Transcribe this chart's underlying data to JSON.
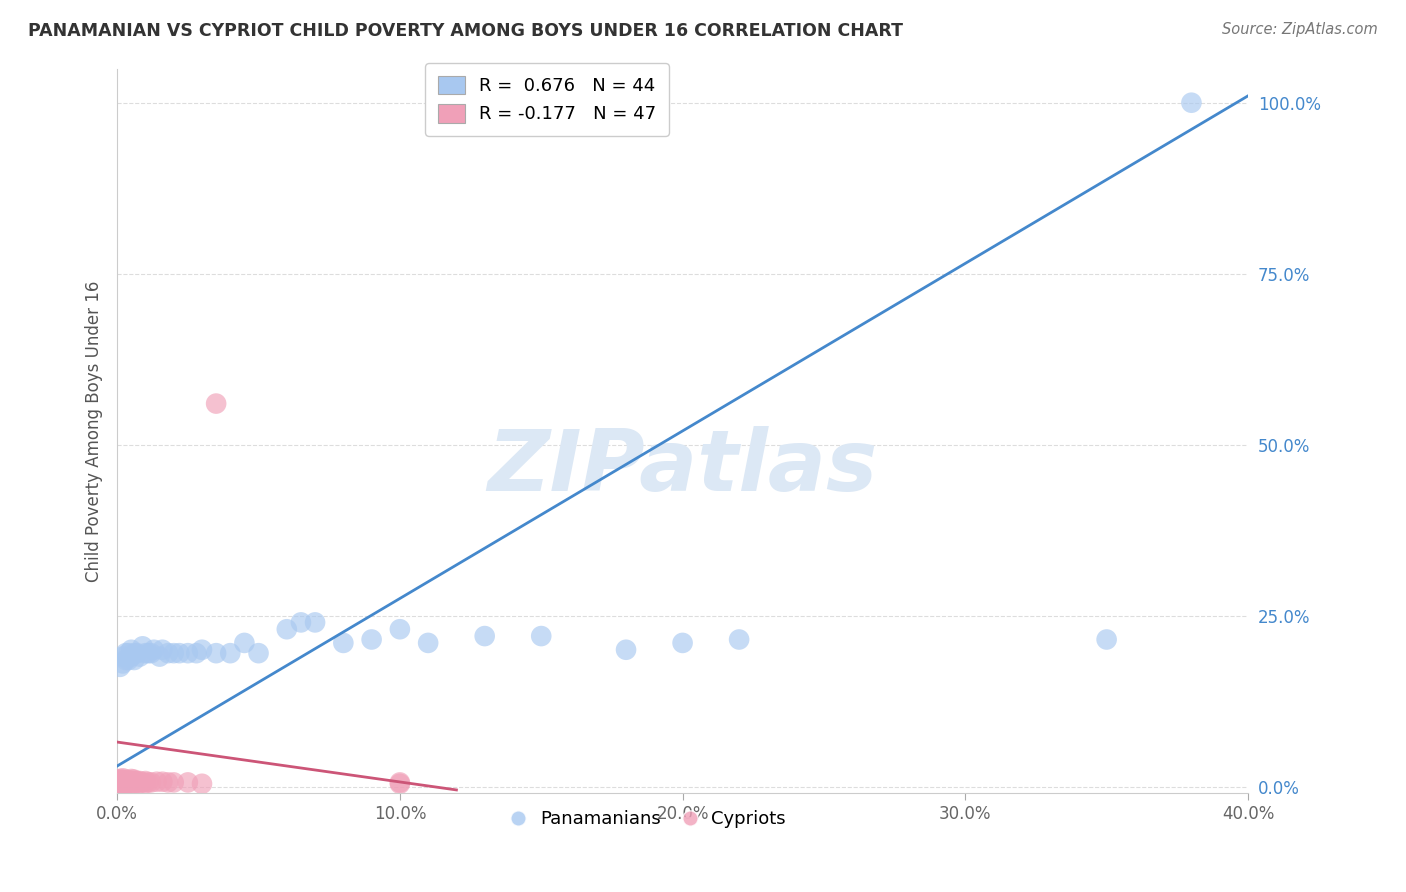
{
  "title": "PANAMANIAN VS CYPRIOT CHILD POVERTY AMONG BOYS UNDER 16 CORRELATION CHART",
  "source": "Source: ZipAtlas.com",
  "ylabel": "Child Poverty Among Boys Under 16",
  "xlim": [
    0.0,
    0.4
  ],
  "ylim": [
    -0.01,
    1.05
  ],
  "xticks": [
    0.0,
    0.1,
    0.2,
    0.3,
    0.4
  ],
  "xticklabels": [
    "0.0%",
    "10.0%",
    "20.0%",
    "30.0%",
    "40.0%"
  ],
  "yticks": [
    0.0,
    0.25,
    0.5,
    0.75,
    1.0
  ],
  "yticklabels": [
    "0.0%",
    "25.0%",
    "50.0%",
    "75.0%",
    "100.0%"
  ],
  "legend_blue_label": "R =  0.676   N = 44",
  "legend_pink_label": "R = -0.177   N = 47",
  "blue_color": "#a8c8f0",
  "pink_color": "#f0a0b8",
  "blue_line_color": "#4488cc",
  "pink_line_color": "#cc5577",
  "ytick_color": "#4488cc",
  "xtick_color": "#666666",
  "watermark": "ZIPatlas",
  "watermark_color": "#dce8f5",
  "pan_x": [
    0.001,
    0.002,
    0.002,
    0.003,
    0.003,
    0.004,
    0.004,
    0.005,
    0.005,
    0.006,
    0.006,
    0.007,
    0.008,
    0.009,
    0.01,
    0.011,
    0.012,
    0.013,
    0.015,
    0.016,
    0.018,
    0.02,
    0.022,
    0.025,
    0.028,
    0.03,
    0.035,
    0.04,
    0.045,
    0.05,
    0.06,
    0.065,
    0.07,
    0.08,
    0.09,
    0.1,
    0.11,
    0.13,
    0.15,
    0.18,
    0.2,
    0.22,
    0.35,
    0.38
  ],
  "pan_y": [
    0.175,
    0.18,
    0.19,
    0.185,
    0.195,
    0.185,
    0.195,
    0.19,
    0.2,
    0.185,
    0.195,
    0.195,
    0.19,
    0.205,
    0.195,
    0.195,
    0.195,
    0.2,
    0.19,
    0.2,
    0.195,
    0.195,
    0.195,
    0.195,
    0.195,
    0.2,
    0.195,
    0.195,
    0.21,
    0.195,
    0.23,
    0.24,
    0.24,
    0.21,
    0.215,
    0.23,
    0.21,
    0.22,
    0.22,
    0.2,
    0.21,
    0.215,
    0.215,
    1.0
  ],
  "cyp_x": [
    0.0,
    0.0,
    0.0,
    0.0,
    0.0,
    0.001,
    0.001,
    0.001,
    0.001,
    0.001,
    0.002,
    0.002,
    0.002,
    0.002,
    0.002,
    0.003,
    0.003,
    0.003,
    0.003,
    0.004,
    0.004,
    0.004,
    0.005,
    0.005,
    0.005,
    0.005,
    0.006,
    0.006,
    0.006,
    0.007,
    0.007,
    0.008,
    0.008,
    0.009,
    0.01,
    0.01,
    0.011,
    0.012,
    0.014,
    0.016,
    0.018,
    0.02,
    0.025,
    0.03,
    0.035,
    0.1,
    0.1
  ],
  "cyp_y": [
    0.005,
    0.006,
    0.007,
    0.008,
    0.01,
    0.004,
    0.006,
    0.007,
    0.009,
    0.011,
    0.004,
    0.006,
    0.007,
    0.009,
    0.012,
    0.004,
    0.006,
    0.008,
    0.01,
    0.005,
    0.007,
    0.009,
    0.004,
    0.006,
    0.008,
    0.011,
    0.004,
    0.007,
    0.01,
    0.005,
    0.008,
    0.005,
    0.008,
    0.006,
    0.005,
    0.008,
    0.006,
    0.006,
    0.007,
    0.007,
    0.006,
    0.006,
    0.006,
    0.004,
    0.56,
    0.004,
    0.006
  ],
  "blue_trend_x": [
    0.0,
    0.4
  ],
  "blue_trend_y": [
    0.03,
    1.01
  ],
  "pink_trend_x": [
    0.0,
    0.12
  ],
  "pink_trend_y": [
    0.065,
    -0.005
  ]
}
